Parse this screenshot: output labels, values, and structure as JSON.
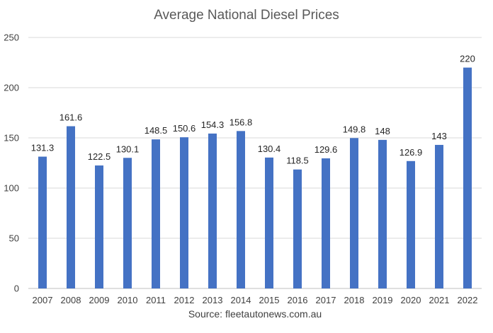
{
  "chart_data": {
    "type": "bar",
    "title": "Average National Diesel Prices",
    "xlabel": "",
    "ylabel": "",
    "categories": [
      "2007",
      "2008",
      "2009",
      "2010",
      "2011",
      "2012",
      "2013",
      "2014",
      "2015",
      "2016",
      "2017",
      "2018",
      "2019",
      "2020",
      "2021",
      "2022"
    ],
    "values": [
      131.3,
      161.6,
      122.5,
      130.1,
      148.5,
      150.6,
      154.3,
      156.8,
      130.4,
      118.5,
      129.6,
      149.8,
      148,
      126.9,
      143,
      220
    ],
    "ylim": [
      0,
      250
    ],
    "yticks": [
      0,
      50,
      100,
      150,
      200,
      250
    ],
    "grid": true,
    "legend": "none",
    "bar_color": "#4472c4",
    "source": "Source: fleetautonews.com.au"
  }
}
